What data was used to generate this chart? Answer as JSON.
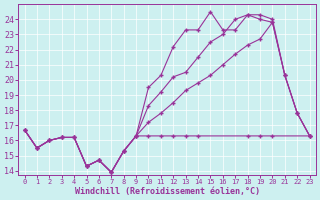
{
  "xlabel": "Windchill (Refroidissement éolien,°C)",
  "bg_color": "#cdf0f0",
  "line_color": "#993399",
  "xlim": [
    -0.5,
    23.5
  ],
  "ylim": [
    13.7,
    25.0
  ],
  "yticks": [
    14,
    15,
    16,
    17,
    18,
    19,
    20,
    21,
    22,
    23,
    24
  ],
  "xticks": [
    0,
    1,
    2,
    3,
    4,
    5,
    6,
    7,
    8,
    9,
    10,
    11,
    12,
    13,
    14,
    15,
    16,
    17,
    18,
    19,
    20,
    21,
    22,
    23
  ],
  "line1_x": [
    0,
    1,
    2,
    3,
    4,
    5,
    6,
    7,
    8,
    9,
    10,
    11,
    12,
    13,
    14,
    18,
    19,
    20,
    23
  ],
  "line1_y": [
    16.7,
    15.5,
    16.0,
    16.2,
    16.2,
    14.3,
    14.7,
    13.9,
    15.3,
    16.3,
    16.3,
    16.3,
    16.3,
    16.3,
    16.3,
    16.3,
    16.3,
    16.3,
    16.3
  ],
  "line2_x": [
    0,
    1,
    2,
    3,
    4,
    5,
    6,
    7,
    8,
    9,
    10,
    11,
    12,
    13,
    14,
    15,
    16,
    17,
    18,
    19,
    20,
    21,
    22,
    23
  ],
  "line2_y": [
    16.7,
    15.5,
    16.0,
    16.2,
    16.2,
    14.3,
    14.7,
    13.9,
    15.3,
    16.3,
    19.5,
    20.3,
    22.2,
    23.3,
    23.3,
    24.5,
    23.3,
    23.3,
    24.3,
    24.3,
    24.0,
    20.3,
    17.8,
    16.3
  ],
  "line3_x": [
    0,
    1,
    2,
    3,
    4,
    5,
    6,
    7,
    8,
    9,
    10,
    11,
    12,
    13,
    14,
    15,
    16,
    17,
    18,
    19,
    20,
    21,
    22,
    23
  ],
  "line3_y": [
    16.7,
    15.5,
    16.0,
    16.2,
    16.2,
    14.3,
    14.7,
    13.9,
    15.3,
    16.3,
    17.2,
    17.8,
    18.5,
    19.3,
    19.8,
    20.3,
    21.0,
    21.7,
    22.3,
    22.7,
    23.8,
    20.3,
    17.8,
    16.3
  ],
  "line4_x": [
    0,
    1,
    2,
    3,
    4,
    5,
    6,
    7,
    8,
    9,
    10,
    11,
    12,
    13,
    14,
    15,
    16,
    17,
    18,
    19,
    20,
    21,
    22,
    23
  ],
  "line4_y": [
    16.7,
    15.5,
    16.0,
    16.2,
    16.2,
    14.3,
    14.7,
    13.9,
    15.3,
    16.3,
    18.3,
    19.2,
    20.2,
    20.5,
    21.5,
    22.5,
    23.0,
    24.0,
    24.3,
    24.0,
    23.8,
    20.3,
    17.8,
    16.3
  ]
}
